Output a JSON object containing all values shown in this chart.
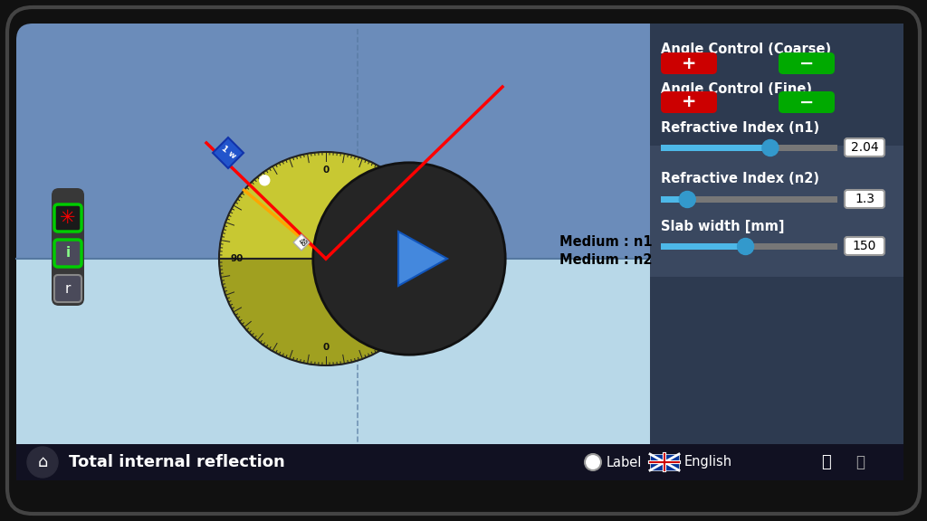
{
  "bg_outer": "#111111",
  "bg_main": "#6b8cba",
  "bg_medium_n2": "#b8d8e8",
  "panel_bg": "#2d3a50",
  "panel_bg2": "#3a4860",
  "title": "Total internal reflection",
  "footer_bg": "#111122",
  "footer_text": "#ffffff",
  "red_btn": "#cc0000",
  "green_btn": "#00aa00",
  "slider_fill": "#4db8e8",
  "slider_thumb": "#3399cc",
  "text_color": "#ffffff",
  "n1_value": "2.04",
  "n2_value": "1.3",
  "slab_value": "150",
  "angle_coarse_label": "Angle Control (Coarse)",
  "angle_fine_label": "Angle Control (Fine)",
  "n1_label": "Refractive Index (n1)",
  "n2_label": "Refractive Index (n2)",
  "slab_label": "Slab width [mm]",
  "medium_n1_text": "Medium : n1",
  "medium_n2_text": "Medium : n2",
  "protractor_color": "#c8c832",
  "protractor_lower_color": "#a0a020",
  "dark_circle_color": "#252525",
  "play_btn_color": "#4488dd"
}
